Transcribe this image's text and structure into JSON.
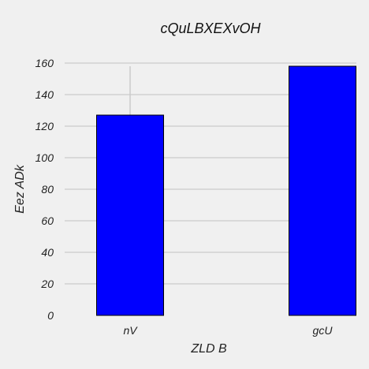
{
  "chart_data": {
    "type": "bar",
    "title": "cQuLBXEXvOH",
    "xlabel": "ZLD B",
    "ylabel": "Eez ADk",
    "categories": [
      "nV",
      "gcU"
    ],
    "values": [
      127,
      158
    ],
    "error_bars": [
      31,
      0
    ],
    "ylim": [
      0,
      160
    ],
    "yticks": [
      0,
      20,
      40,
      60,
      80,
      100,
      120,
      140,
      160
    ],
    "grid": true,
    "bar_color": "#0000ff",
    "background_color": "#f0f0f0",
    "grid_color": "#cbcbcb"
  }
}
